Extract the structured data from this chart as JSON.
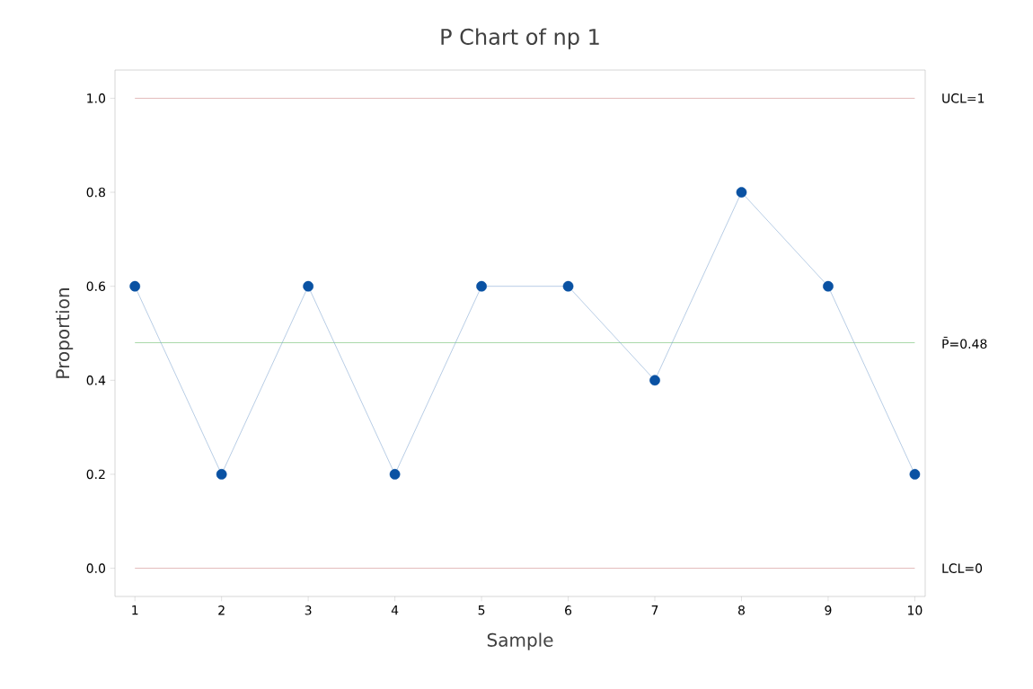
{
  "chart_data": {
    "type": "line",
    "title": "P Chart of np 1",
    "xlabel": "Sample",
    "ylabel": "Proportion",
    "x": [
      1,
      2,
      3,
      4,
      5,
      6,
      7,
      8,
      9,
      10
    ],
    "series": [
      {
        "color": "#0a52a3",
        "values": [
          0.6,
          0.2,
          0.6,
          0.2,
          0.6,
          0.6,
          0.4,
          0.8,
          0.6,
          0.2
        ]
      }
    ],
    "xlim": [
      0.77,
      10.12
    ],
    "ylim": [
      -0.06,
      1.06
    ],
    "xticks": [
      1,
      2,
      3,
      4,
      5,
      6,
      7,
      8,
      9,
      10
    ],
    "yticks": [
      {
        "value": 0,
        "label": "0.0"
      },
      {
        "value": 0.2,
        "label": "0.2"
      },
      {
        "value": 0.4,
        "label": "0.4"
      },
      {
        "value": 0.6,
        "label": "0.6"
      },
      {
        "value": 0.8,
        "label": "0.8"
      },
      {
        "value": 1,
        "label": "1.0"
      }
    ],
    "ref_lines": [
      {
        "axis": "y",
        "value": 1,
        "label": "UCL=1",
        "color": "#c97b7b"
      },
      {
        "axis": "y",
        "value": 0.48,
        "label": "P̄=0.48",
        "color": "#5cb85c"
      },
      {
        "axis": "y",
        "value": 0,
        "label": "LCL=0",
        "color": "#c97b7b"
      }
    ],
    "marker": "circle",
    "line_style": "solid",
    "grid": false
  }
}
